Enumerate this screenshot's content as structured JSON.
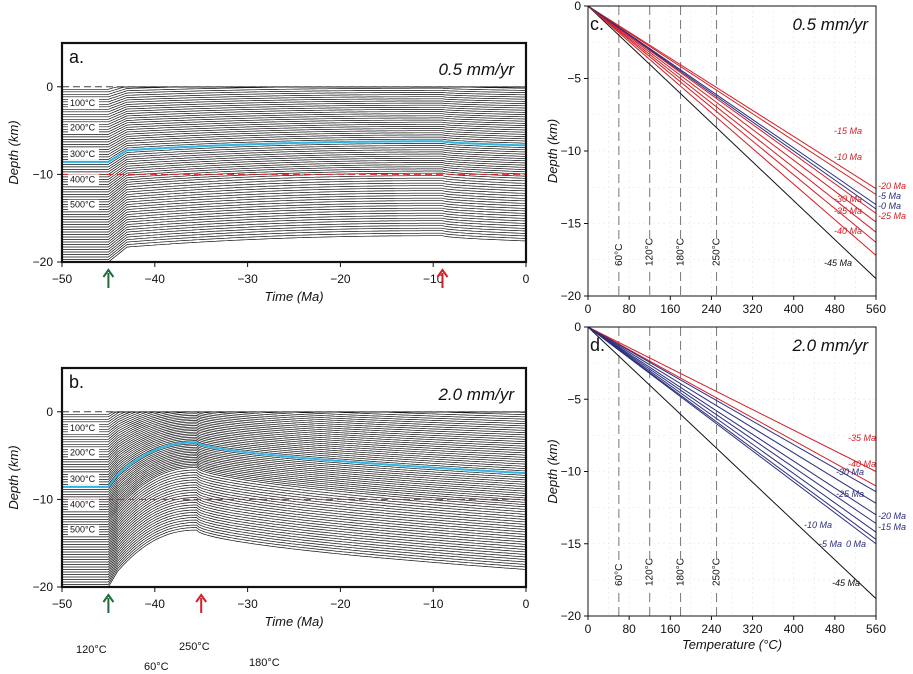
{
  "colors": {
    "red": "#d42027",
    "blue": "#2b2f7e",
    "cyan": "#2cb3e0",
    "green": "#1f6b3b",
    "black": "#111111",
    "grey": "#777777"
  },
  "chart_data": [
    {
      "panel": "a",
      "type": "line",
      "panel_label": "a.",
      "rate_label": "0.5 mm/yr",
      "xlabel": "Time (Ma)",
      "ylabel": "Depth (km)",
      "xlim": [
        -50,
        0
      ],
      "ylim": [
        -20,
        5
      ],
      "x_ticks": [
        -50,
        -40,
        -30,
        -20,
        -10,
        0
      ],
      "x_tick_labels": [
        "−50",
        "−40",
        "−30",
        "−20",
        "−10",
        "0"
      ],
      "y_ticks": [
        0,
        -10,
        -20
      ],
      "y_tick_labels": [
        "0",
        "−10",
        "−20"
      ],
      "isotherm_labels": [
        "100°C",
        "200°C",
        "300°C",
        "400°C",
        "500°C"
      ],
      "isotherm_label_depths": [
        -2.2,
        -5.0,
        -8.0,
        -10.9,
        -13.8
      ],
      "isotherm_spacing_c": 10,
      "isotherm_count": 70,
      "events_ma": [
        -45,
        -9
      ],
      "event_arrow_colors": [
        "green",
        "red"
      ],
      "reference_depth_km": -10,
      "highlight_isotherm_c": 300,
      "isotherm_model": {
        "t_start": -45,
        "ramp_end": -43,
        "t_peak": -9,
        "initial_shift": 1.7,
        "peak_shift": 3.0,
        "final_shift": 2.4
      }
    },
    {
      "panel": "b",
      "type": "line",
      "panel_label": "b.",
      "rate_label": "2.0 mm/yr",
      "xlabel": "Time (Ma)",
      "ylabel": "Depth (km)",
      "xlim": [
        -50,
        0
      ],
      "ylim": [
        -20,
        5
      ],
      "x_ticks": [
        -50,
        -40,
        -30,
        -20,
        -10,
        0
      ],
      "x_tick_labels": [
        "−50",
        "−40",
        "−30",
        "−20",
        "−10",
        "0"
      ],
      "y_ticks": [
        0,
        -10,
        -20
      ],
      "y_tick_labels": [
        "0",
        "−10",
        "−20"
      ],
      "isotherm_labels": [
        "100°C",
        "200°C",
        "300°C",
        "400°C",
        "500°C"
      ],
      "isotherm_label_depths": [
        -2.2,
        -5.0,
        -8.0,
        -10.9,
        -13.8
      ],
      "isotherm_spacing_c": 10,
      "isotherm_count": 70,
      "events_ma": [
        -45,
        -35
      ],
      "event_arrow_colors": [
        "green",
        "red"
      ],
      "reference_depth_km": -10,
      "highlight_isotherm_c": 300,
      "isotherm_model": {
        "t_start": -45,
        "ramp_end": -44,
        "t_peak": -35.5,
        "initial_shift": 1.8,
        "peak_shift": 6.5,
        "final_shift": 2.0
      }
    },
    {
      "panel": "c",
      "type": "line",
      "panel_label": "c.",
      "rate_label": "0.5 mm/yr",
      "xlabel": "",
      "ylabel": "Depth (km)",
      "xlim": [
        0,
        560
      ],
      "ylim": [
        -20,
        0
      ],
      "x_ticks": [
        0,
        80,
        160,
        240,
        320,
        400,
        480,
        560
      ],
      "y_ticks": [
        0,
        -5,
        -10,
        -15,
        -20
      ],
      "y_tick_labels": [
        "0",
        "−5",
        "−10",
        "−15",
        "−20"
      ],
      "temperature_markers": [
        60,
        120,
        180,
        250
      ],
      "temperature_marker_labels": [
        "60°C",
        "120°C",
        "180°C",
        "250°C"
      ],
      "series": [
        {
          "name": "-45 Ma",
          "color": "black",
          "depth_at_560": -18.8
        },
        {
          "name": "-40 Ma",
          "color": "red",
          "depth_at_560": -17.2
        },
        {
          "name": "-35 Ma",
          "color": "red",
          "depth_at_560": -16.3
        },
        {
          "name": "-30 Ma",
          "color": "red",
          "depth_at_560": -15.6
        },
        {
          "name": "-25 Ma",
          "color": "red",
          "depth_at_560": -14.9
        },
        {
          "name": "-20 Ma",
          "color": "red",
          "depth_at_560": -14.3
        },
        {
          "name": "-15 Ma",
          "color": "red",
          "depth_at_560": -12.6
        },
        {
          "name": "-10 Ma",
          "color": "red",
          "depth_at_560": -13.0
        },
        {
          "name": "-5 Ma",
          "color": "blue",
          "depth_at_560": -13.7
        },
        {
          "name": "-0 Ma",
          "color": "blue",
          "depth_at_560": -14.0
        }
      ],
      "series_labels": [
        "-15 Ma",
        "-10 Ma",
        "-20 Ma",
        "-5 Ma",
        "-0 Ma",
        "-30 Ma",
        "-25 Ma",
        "-35 Ma",
        "-40 Ma",
        "-45 Ma"
      ]
    },
    {
      "panel": "d",
      "type": "line",
      "panel_label": "d.",
      "rate_label": "2.0 mm/yr",
      "xlabel": "Temperature (°C)",
      "ylabel": "Depth (km)",
      "xlim": [
        0,
        560
      ],
      "ylim": [
        -20,
        0
      ],
      "x_ticks": [
        0,
        80,
        160,
        240,
        320,
        400,
        480,
        560
      ],
      "y_ticks": [
        0,
        -5,
        -10,
        -15,
        -20
      ],
      "y_tick_labels": [
        "0",
        "−5",
        "−10",
        "−15",
        "−20"
      ],
      "temperature_markers": [
        60,
        120,
        180,
        250
      ],
      "temperature_marker_labels": [
        "60°C",
        "120°C",
        "180°C",
        "250°C"
      ],
      "series": [
        {
          "name": "-45 Ma",
          "color": "black",
          "depth_at_560": -18.8
        },
        {
          "name": "-40 Ma",
          "color": "red",
          "depth_at_560": -11.0
        },
        {
          "name": "-35 Ma",
          "color": "red",
          "depth_at_560": -10.0
        },
        {
          "name": "-30 Ma",
          "color": "blue",
          "depth_at_560": -11.4
        },
        {
          "name": "-25 Ma",
          "color": "blue",
          "depth_at_560": -12.2
        },
        {
          "name": "-20 Ma",
          "color": "blue",
          "depth_at_560": -13.0
        },
        {
          "name": "-15 Ma",
          "color": "blue",
          "depth_at_560": -13.6
        },
        {
          "name": "-10 Ma",
          "color": "blue",
          "depth_at_560": -14.2
        },
        {
          "name": "-5 Ma",
          "color": "blue",
          "depth_at_560": -14.7
        },
        {
          "name": "0 Ma",
          "color": "blue",
          "depth_at_560": -15.0
        }
      ],
      "series_labels": [
        "-35 Ma",
        "-40 Ma",
        "-30 Ma",
        "-25 Ma",
        "-20 Ma",
        "-15 Ma",
        "-10 Ma",
        "-5 Ma",
        "0 Ma",
        "-45 Ma"
      ]
    }
  ],
  "footer_labels": [
    "120°C",
    "60°C",
    "250°C",
    "180°C"
  ]
}
